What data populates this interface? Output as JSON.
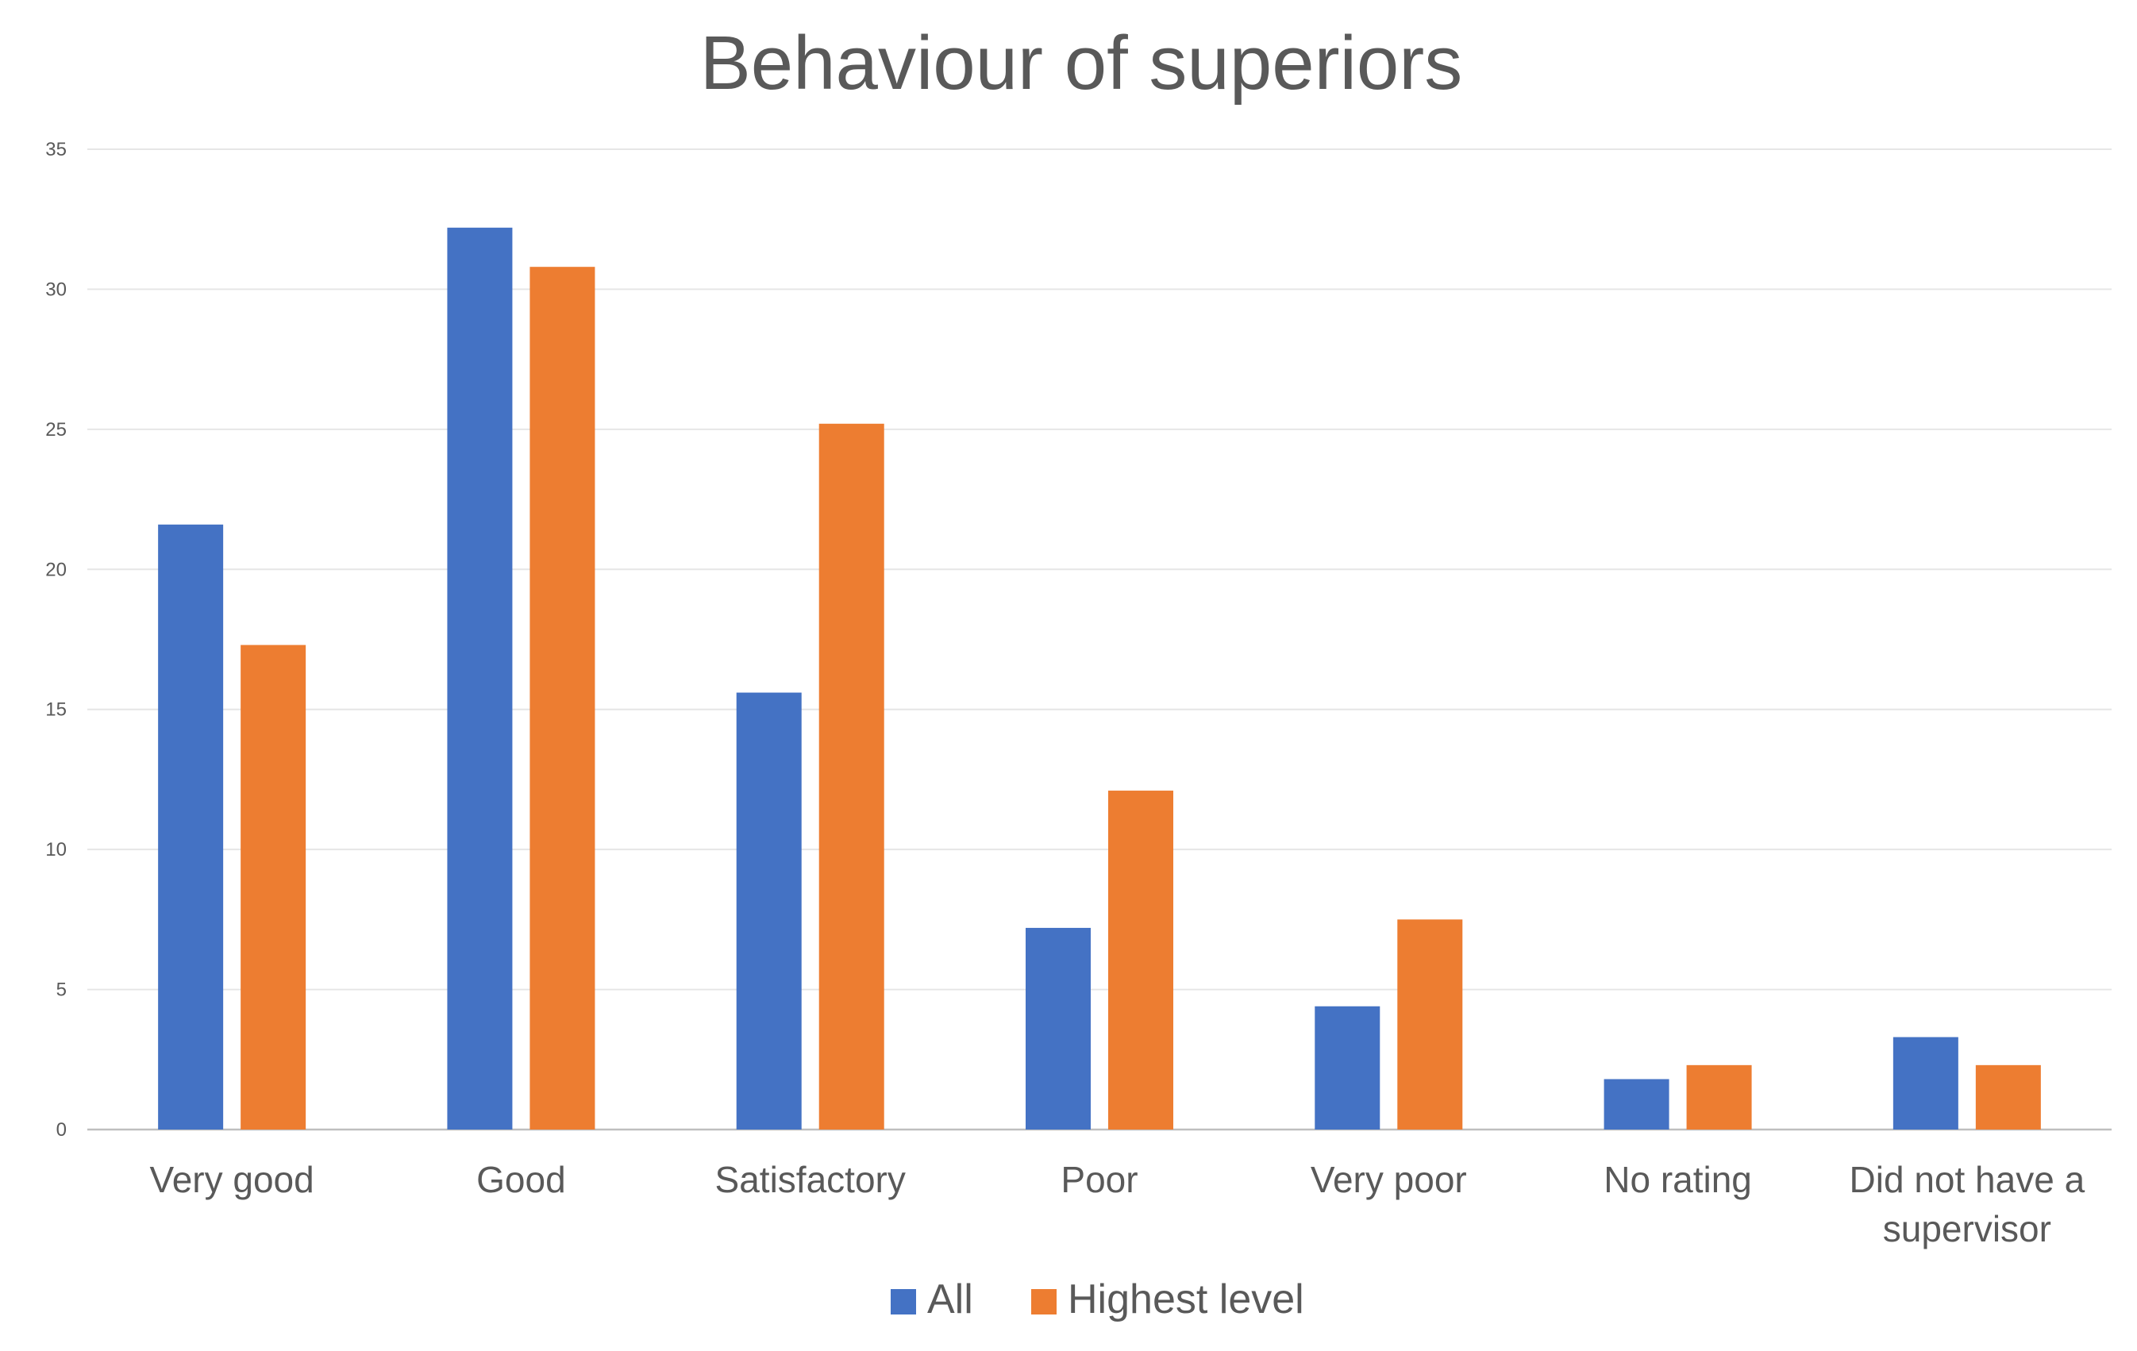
{
  "chart_data": {
    "type": "bar",
    "title": "Behaviour of superiors",
    "xlabel": "",
    "ylabel": "",
    "ylim": [
      0,
      35
    ],
    "yticks": [
      0,
      5,
      10,
      15,
      20,
      25,
      30,
      35
    ],
    "grid": true,
    "legend_position": "bottom",
    "categories": [
      "Very good",
      "Good",
      "Satisfactory",
      "Poor",
      "Very poor",
      "No rating",
      "Did not have a supervisor"
    ],
    "series": [
      {
        "name": "All",
        "color": "#4472C4",
        "values": [
          21.6,
          32.2,
          15.6,
          7.2,
          4.4,
          1.8,
          3.3
        ]
      },
      {
        "name": "Highest level",
        "color": "#ED7D31",
        "values": [
          17.3,
          30.8,
          25.2,
          12.1,
          7.5,
          2.3,
          2.3
        ]
      }
    ]
  }
}
